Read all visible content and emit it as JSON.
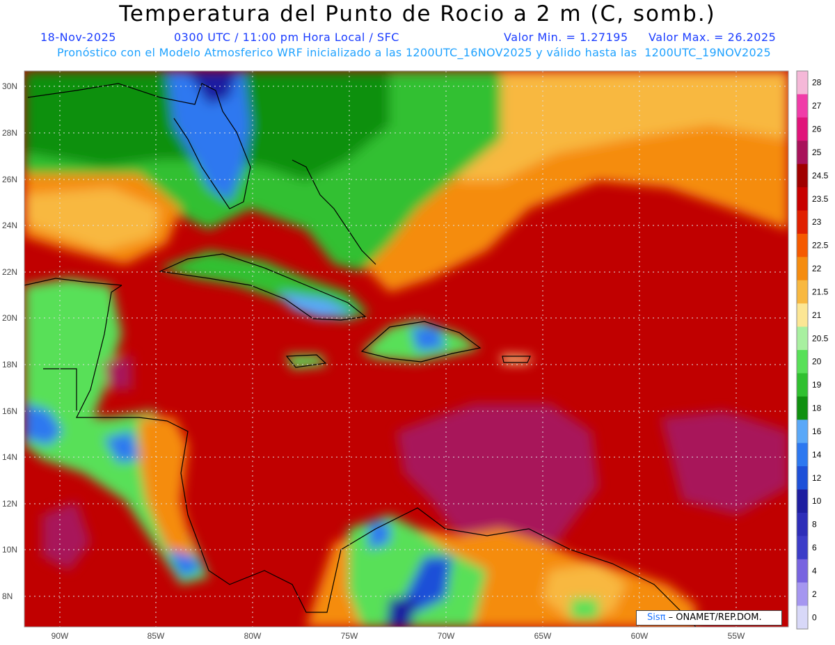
{
  "header": {
    "title": "Temperatura del Punto de Rocio a 2 m (C, somb.)",
    "date": "18-Nov-2025",
    "time": "0300 UTC / 11:00 pm Hora Local / SFC",
    "min_value": "Valor Min. = 1.27195",
    "max_value": "Valor Max. = 26.2025",
    "model_info": "Pronóstico con el Modelo Atmosferico WRF inicializado a las 1200UTC_16NOV2025 y válido hasta las  1200UTC_19NOV2025"
  },
  "axes": {
    "lat_labels": [
      "30N",
      "28N",
      "26N",
      "24N",
      "22N",
      "20N",
      "18N",
      "16N",
      "14N",
      "12N",
      "10N",
      "8N"
    ],
    "lon_labels": [
      "90W",
      "85W",
      "80W",
      "75W",
      "70W",
      "65W",
      "60W",
      "55W"
    ]
  },
  "colorbar": {
    "labels": [
      "28",
      "27",
      "26",
      "25",
      "24.5",
      "23.5",
      "23",
      "22.5",
      "22",
      "21.5",
      "21",
      "20.5",
      "20",
      "19",
      "18",
      "16",
      "14",
      "12",
      "10",
      "8",
      "6",
      "4",
      "2",
      "0"
    ],
    "colors": [
      "#f5b8d8",
      "#f03ca8",
      "#e0147a",
      "#a8125a",
      "#a00000",
      "#c80000",
      "#e02000",
      "#f55a00",
      "#f58c10",
      "#f8b840",
      "#fce694",
      "#a8f0a0",
      "#58e058",
      "#30c030",
      "#109010",
      "#5aa8f8",
      "#2d78f0",
      "#1e50d8",
      "#1e1ea0",
      "#2d2db8",
      "#3c3cc8",
      "#7864e0",
      "#a596f0",
      "#d8d8f8"
    ]
  },
  "credit": {
    "logo": "Sisπ",
    "text": "– ONAMET/REP.DOM."
  }
}
